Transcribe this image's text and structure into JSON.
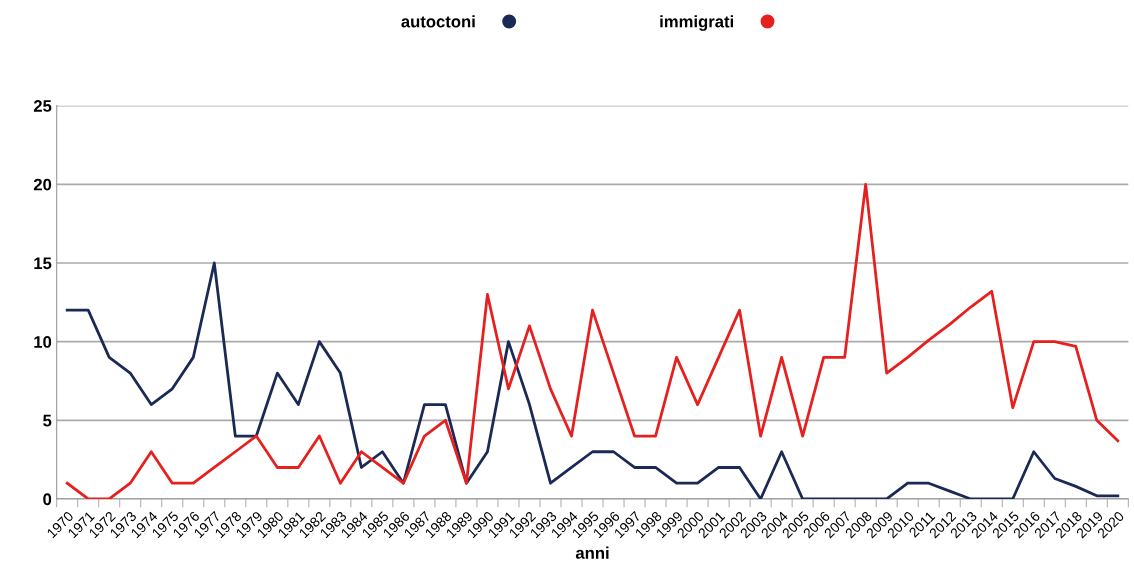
{
  "chart_data": {
    "type": "line",
    "xlabel": "anni",
    "categories": [
      "1970",
      "1971",
      "1972",
      "1973",
      "1974",
      "1975",
      "1976",
      "1977",
      "1978",
      "1979",
      "1980",
      "1981",
      "1982",
      "1983",
      "1984",
      "1985",
      "1986",
      "1987",
      "1988",
      "1989",
      "1990",
      "1991",
      "1992",
      "1993",
      "1994",
      "1995",
      "1996",
      "1997",
      "1998",
      "1999",
      "2000",
      "2001",
      "2002",
      "2003",
      "2004",
      "2005",
      "2006",
      "2007",
      "2008",
      "2009",
      "2010",
      "2011",
      "2012",
      "2013",
      "2014",
      "2015",
      "2016",
      "2017",
      "2018",
      "2019",
      "2020"
    ],
    "series": [
      {
        "name": "autoctoni",
        "color": "#1b2a55",
        "values": [
          12,
          12,
          9,
          8,
          6,
          7,
          9,
          15,
          4,
          4,
          8,
          6,
          10,
          8,
          2,
          3,
          1,
          6,
          6,
          1,
          3,
          10,
          6,
          1,
          2,
          3,
          3,
          2,
          2,
          1,
          1,
          2,
          2,
          0,
          3,
          0,
          0,
          0,
          0,
          0,
          1,
          1,
          0.5,
          0,
          0,
          0,
          3,
          1.3,
          0.8,
          0.2,
          0.2
        ]
      },
      {
        "name": "immigrati",
        "color": "#e5201f",
        "values": [
          1,
          0,
          0,
          1,
          3,
          1,
          1,
          2,
          3,
          4,
          2,
          2,
          4,
          1,
          3,
          2,
          1,
          4,
          5,
          1,
          13,
          7,
          11,
          7,
          4,
          12,
          8,
          4,
          4,
          9,
          6,
          9,
          12,
          4,
          9,
          4,
          9,
          9,
          20,
          8,
          9,
          10.1,
          11.1,
          12.2,
          13.2,
          5.8,
          10,
          10,
          9.7,
          5,
          3.7
        ]
      }
    ],
    "ylim": [
      0,
      25
    ],
    "yticks": [
      0,
      5,
      10,
      15,
      20,
      25
    ],
    "grid": "y",
    "legend": "top",
    "marker": "none",
    "line_style": "solid"
  }
}
